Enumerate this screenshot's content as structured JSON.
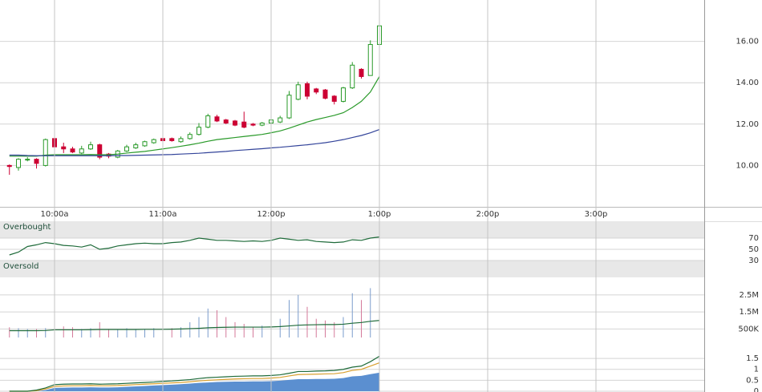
{
  "chart_data": [
    {
      "type": "candlestick",
      "categories": [
        null,
        null,
        null,
        null,
        null,
        "10:00a",
        null,
        null,
        null,
        null,
        null,
        null,
        null,
        null,
        null,
        null,
        null,
        "11:00a",
        null,
        null,
        null,
        null,
        null,
        null,
        null,
        null,
        null,
        null,
        null,
        "12:00p",
        null,
        null,
        null,
        null,
        null,
        null,
        null,
        null,
        null,
        null,
        null,
        "1:00p",
        null,
        null,
        null,
        null,
        null,
        null,
        null,
        null,
        null,
        null,
        null,
        "2:00p",
        null,
        null,
        null,
        null,
        null,
        null,
        null,
        null,
        null,
        null,
        null,
        "3:00p",
        null,
        null,
        null,
        null,
        null,
        null,
        null,
        null,
        null,
        null,
        null,
        null
      ],
      "open": [
        10.0,
        9.9,
        10.3,
        10.3,
        10.0,
        11.3,
        10.9,
        10.8,
        10.6,
        10.8,
        11.0,
        10.55,
        10.4,
        10.7,
        10.85,
        10.95,
        11.1,
        11.3,
        11.3,
        11.15,
        11.3,
        11.5,
        11.85,
        12.35,
        12.2,
        12.15,
        12.1,
        12.0,
        11.95,
        12.05,
        12.1,
        12.3,
        13.2,
        13.95,
        13.7,
        13.65,
        13.35,
        13.1,
        13.75,
        14.65,
        14.35,
        15.85,
        null,
        null,
        null,
        null,
        null,
        null,
        null,
        null,
        null,
        null,
        null,
        null,
        null,
        null,
        null,
        null,
        null,
        null,
        null,
        null,
        null,
        null,
        null,
        null,
        null,
        null,
        null,
        null,
        null,
        null,
        null,
        null,
        null,
        null,
        null,
        null
      ],
      "high": [
        10.05,
        10.35,
        10.4,
        10.35,
        11.3,
        11.75,
        11.1,
        10.9,
        10.95,
        11.15,
        11.05,
        10.6,
        10.75,
        11.0,
        11.1,
        11.2,
        11.3,
        11.4,
        11.35,
        11.4,
        11.6,
        12.05,
        12.5,
        12.45,
        12.25,
        12.2,
        12.6,
        12.05,
        12.1,
        12.25,
        12.4,
        13.6,
        14.05,
        14.05,
        13.75,
        13.7,
        13.4,
        13.8,
        15.0,
        14.7,
        16.05,
        16.8,
        null,
        null,
        null,
        null,
        null,
        null,
        null,
        null,
        null,
        null,
        null,
        null,
        null,
        null,
        null,
        null,
        null,
        null,
        null,
        null,
        null,
        null,
        null,
        null,
        null,
        null,
        null,
        null,
        null,
        null,
        null,
        null,
        null,
        null,
        null,
        null
      ],
      "low": [
        9.55,
        9.75,
        10.2,
        9.85,
        9.95,
        10.85,
        10.6,
        10.6,
        10.55,
        10.75,
        10.3,
        10.35,
        10.35,
        10.65,
        10.8,
        10.9,
        11.05,
        11.15,
        11.15,
        11.1,
        11.25,
        11.45,
        11.8,
        12.1,
        12.0,
        11.9,
        11.8,
        11.9,
        11.9,
        12.0,
        12.05,
        12.25,
        13.15,
        13.2,
        13.45,
        13.2,
        12.95,
        13.05,
        13.7,
        14.2,
        14.35,
        15.8,
        null,
        null,
        null,
        null,
        null,
        null,
        null,
        null,
        null,
        null,
        null,
        null,
        null,
        null,
        null,
        null,
        null,
        null,
        null,
        null,
        null,
        null,
        null,
        null,
        null,
        null,
        null,
        null,
        null,
        null,
        null,
        null,
        null,
        null,
        null,
        null
      ],
      "close": [
        9.95,
        10.3,
        10.3,
        10.1,
        11.25,
        10.9,
        10.8,
        10.65,
        10.8,
        11.0,
        10.4,
        10.45,
        10.7,
        10.9,
        11.0,
        11.15,
        11.25,
        11.2,
        11.2,
        11.3,
        11.5,
        11.85,
        12.4,
        12.15,
        12.05,
        11.95,
        11.85,
        11.95,
        12.05,
        12.2,
        12.3,
        13.4,
        13.9,
        13.35,
        13.55,
        13.25,
        13.1,
        13.75,
        14.85,
        14.3,
        15.85,
        16.75,
        null,
        null,
        null,
        null,
        null,
        null,
        null,
        null,
        null,
        null,
        null,
        null,
        null,
        null,
        null,
        null,
        null,
        null,
        null,
        null,
        null,
        null,
        null,
        null,
        null,
        null,
        null,
        null,
        null,
        null,
        null,
        null,
        null,
        null,
        null,
        null
      ],
      "up_color": "#2a9a2a",
      "down_color": "#cc0033",
      "series": [
        {
          "color": "#2a9a2a",
          "values": [
            10.45,
            10.45,
            10.45,
            10.45,
            10.5,
            10.52,
            10.52,
            10.52,
            10.52,
            10.53,
            10.52,
            10.52,
            10.55,
            10.6,
            10.64,
            10.68,
            10.74,
            10.8,
            10.86,
            10.93,
            11.0,
            11.08,
            11.17,
            11.25,
            11.3,
            11.35,
            11.4,
            11.45,
            11.5,
            11.58,
            11.67,
            11.8,
            11.95,
            12.1,
            12.22,
            12.32,
            12.42,
            12.55,
            12.8,
            13.1,
            13.55,
            14.3,
            null,
            null,
            null,
            null,
            null,
            null,
            null,
            null,
            null,
            null,
            null,
            null,
            null,
            null,
            null,
            null,
            null,
            null,
            null,
            null,
            null,
            null,
            null,
            null,
            null,
            null,
            null,
            null,
            null,
            null,
            null,
            null,
            null,
            null,
            null,
            null
          ]
        },
        {
          "color": "#33449a",
          "values": [
            10.5,
            10.5,
            10.48,
            10.47,
            10.47,
            10.47,
            10.47,
            10.47,
            10.47,
            10.47,
            10.47,
            10.47,
            10.48,
            10.48,
            10.49,
            10.5,
            10.51,
            10.52,
            10.53,
            10.55,
            10.57,
            10.59,
            10.62,
            10.65,
            10.68,
            10.72,
            10.75,
            10.78,
            10.81,
            10.85,
            10.88,
            10.92,
            10.96,
            11.0,
            11.05,
            11.1,
            11.17,
            11.25,
            11.35,
            11.45,
            11.58,
            11.74,
            null,
            null,
            null,
            null,
            null,
            null,
            null,
            null,
            null,
            null,
            null,
            null,
            null,
            null,
            null,
            null,
            null,
            null,
            null,
            null,
            null,
            null,
            null,
            null,
            null,
            null,
            null,
            null,
            null,
            null,
            null,
            null,
            null,
            null,
            null,
            null
          ]
        }
      ],
      "ylim": [
        8,
        18
      ],
      "yticks": [
        {
          "value": 10,
          "label": "10.00"
        },
        {
          "value": 12,
          "label": "12.00"
        },
        {
          "value": 14,
          "label": "14.00"
        },
        {
          "value": 16,
          "label": "16.00"
        }
      ],
      "grid": true
    },
    {
      "type": "line",
      "series": [
        {
          "color": "#1f6b3a",
          "values": [
            40,
            45,
            55,
            58,
            62,
            60,
            57,
            56,
            54,
            58,
            50,
            52,
            56,
            58,
            60,
            61,
            60,
            60,
            62,
            63,
            66,
            70,
            68,
            66,
            66,
            65,
            64,
            65,
            64,
            66,
            70,
            68,
            66,
            67,
            64,
            63,
            62,
            63,
            67,
            66,
            70,
            72,
            null,
            null,
            null,
            null,
            null,
            null,
            null,
            null,
            null,
            null,
            null,
            null,
            null,
            null,
            null,
            null,
            null,
            null,
            null,
            null,
            null,
            null,
            null,
            null,
            null,
            null,
            null,
            null,
            null,
            null,
            null,
            null,
            null,
            null,
            null,
            null
          ]
        }
      ],
      "bands": [
        {
          "from": 70,
          "to": 100,
          "label": "Overbought"
        },
        {
          "from": 0,
          "to": 30,
          "label": "Oversold"
        }
      ],
      "ylim": [
        0,
        100
      ],
      "yticks": [
        70,
        50,
        30
      ],
      "grid": true
    },
    {
      "type": "bar",
      "values": [
        600000,
        550000,
        500000,
        500000,
        550000,
        1400000,
        650000,
        600000,
        500000,
        550000,
        900000,
        500000,
        450000,
        550000,
        500000,
        500000,
        550000,
        600000,
        550000,
        600000,
        900000,
        1200000,
        1700000,
        1600000,
        1200000,
        900000,
        800000,
        600000,
        700000,
        800000,
        1100000,
        2200000,
        2500000,
        1800000,
        1100000,
        1000000,
        900000,
        1200000,
        2600000,
        2200000,
        2900000,
        1900000,
        null,
        null,
        null,
        null,
        null,
        null,
        null,
        null,
        null,
        null,
        null,
        null,
        null,
        null,
        null,
        null,
        null,
        null,
        null,
        null,
        null,
        null,
        null,
        null,
        null,
        null,
        null,
        null,
        null,
        null,
        null,
        null,
        null,
        null,
        null,
        null
      ],
      "up_color": "#7a9ccc",
      "down_color": "#d47a9a",
      "series": [
        {
          "color": "#1f6b3a",
          "values": [
            400000,
            400000,
            400000,
            400000,
            410000,
            450000,
            450000,
            450000,
            450000,
            460000,
            470000,
            470000,
            470000,
            470000,
            470000,
            480000,
            480000,
            480000,
            490000,
            500000,
            520000,
            540000,
            570000,
            590000,
            600000,
            610000,
            610000,
            610000,
            610000,
            620000,
            640000,
            680000,
            720000,
            740000,
            750000,
            760000,
            760000,
            780000,
            840000,
            880000,
            950000,
            1000000,
            null,
            null,
            null,
            null,
            null,
            null,
            null,
            null,
            null,
            null,
            null,
            null,
            null,
            null,
            null,
            null,
            null,
            null,
            null,
            null,
            null,
            null,
            null,
            null,
            null,
            null,
            null,
            null,
            null,
            null,
            null,
            null,
            null,
            null,
            null,
            null
          ]
        }
      ],
      "ylim": [
        0,
        3250000
      ],
      "yticks": [
        {
          "value": 2500000,
          "label": "2.5M"
        },
        {
          "value": 1500000,
          "label": "1.5M"
        },
        {
          "value": 500000,
          "label": "500K"
        }
      ],
      "grid": true
    },
    {
      "type": "line",
      "series": [
        {
          "color": "#5b8fd0",
          "fill": true,
          "values": [
            0,
            0,
            0,
            0,
            0.05,
            0.15,
            0.16,
            0.17,
            0.17,
            0.18,
            0.17,
            0.17,
            0.18,
            0.2,
            0.22,
            0.24,
            0.26,
            0.28,
            0.3,
            0.32,
            0.35,
            0.38,
            0.4,
            0.42,
            0.43,
            0.44,
            0.44,
            0.45,
            0.45,
            0.46,
            0.48,
            0.52,
            0.55,
            0.55,
            0.56,
            0.56,
            0.57,
            0.6,
            0.68,
            0.7,
            0.78,
            0.85,
            null,
            null,
            null,
            null,
            null,
            null,
            null,
            null,
            null,
            null,
            null,
            null,
            null,
            null,
            null,
            null,
            null,
            null,
            null,
            null,
            null,
            null,
            null,
            null,
            null,
            null,
            null,
            null,
            null,
            null,
            null,
            null,
            null,
            null,
            null,
            null
          ]
        },
        {
          "color": "#d9a030",
          "values": [
            0,
            0,
            0,
            0.02,
            0.1,
            0.22,
            0.24,
            0.25,
            0.25,
            0.26,
            0.25,
            0.25,
            0.26,
            0.28,
            0.3,
            0.32,
            0.34,
            0.36,
            0.38,
            0.4,
            0.43,
            0.47,
            0.5,
            0.52,
            0.54,
            0.56,
            0.57,
            0.58,
            0.58,
            0.6,
            0.63,
            0.7,
            0.76,
            0.77,
            0.78,
            0.79,
            0.8,
            0.85,
            0.95,
            1.0,
            1.15,
            1.3,
            null,
            null,
            null,
            null,
            null,
            null,
            null,
            null,
            null,
            null,
            null,
            null,
            null,
            null,
            null,
            null,
            null,
            null,
            null,
            null,
            null,
            null,
            null,
            null,
            null,
            null,
            null,
            null,
            null,
            null,
            null,
            null,
            null,
            null,
            null,
            null
          ]
        },
        {
          "color": "#1f6b3a",
          "values": [
            0,
            0,
            0,
            0.05,
            0.15,
            0.3,
            0.32,
            0.33,
            0.33,
            0.34,
            0.32,
            0.33,
            0.34,
            0.36,
            0.38,
            0.4,
            0.42,
            0.45,
            0.47,
            0.5,
            0.53,
            0.58,
            0.62,
            0.64,
            0.66,
            0.68,
            0.69,
            0.7,
            0.7,
            0.72,
            0.75,
            0.82,
            0.9,
            0.9,
            0.92,
            0.93,
            0.95,
            1.0,
            1.1,
            1.15,
            1.35,
            1.6,
            null,
            null,
            null,
            null,
            null,
            null,
            null,
            null,
            null,
            null,
            null,
            null,
            null,
            null,
            null,
            null,
            null,
            null,
            null,
            null,
            null,
            null,
            null,
            null,
            null,
            null,
            null,
            null,
            null,
            null,
            null,
            null,
            null,
            null,
            null,
            null
          ]
        }
      ],
      "ylim": [
        0,
        2.2
      ],
      "yticks": [
        1.5,
        1,
        0.5,
        0
      ],
      "grid": true
    }
  ]
}
